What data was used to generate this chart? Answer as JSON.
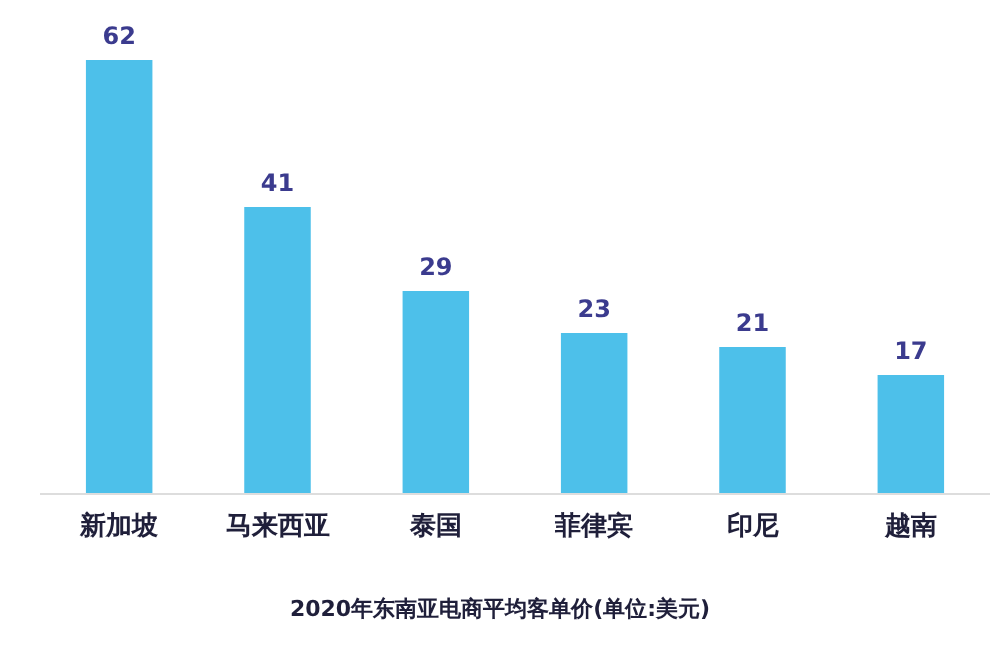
{
  "chart_data": {
    "type": "bar",
    "xlabel": "2020年东南亚电商平均客单价(单位:美元)",
    "categories": [
      "新加坡",
      "马来西亚",
      "泰国",
      "菲律宾",
      "印尼",
      "越南"
    ],
    "values": [
      62,
      41,
      29,
      23,
      21,
      17
    ],
    "color": "#4dc0ea",
    "data_labels": true
  }
}
